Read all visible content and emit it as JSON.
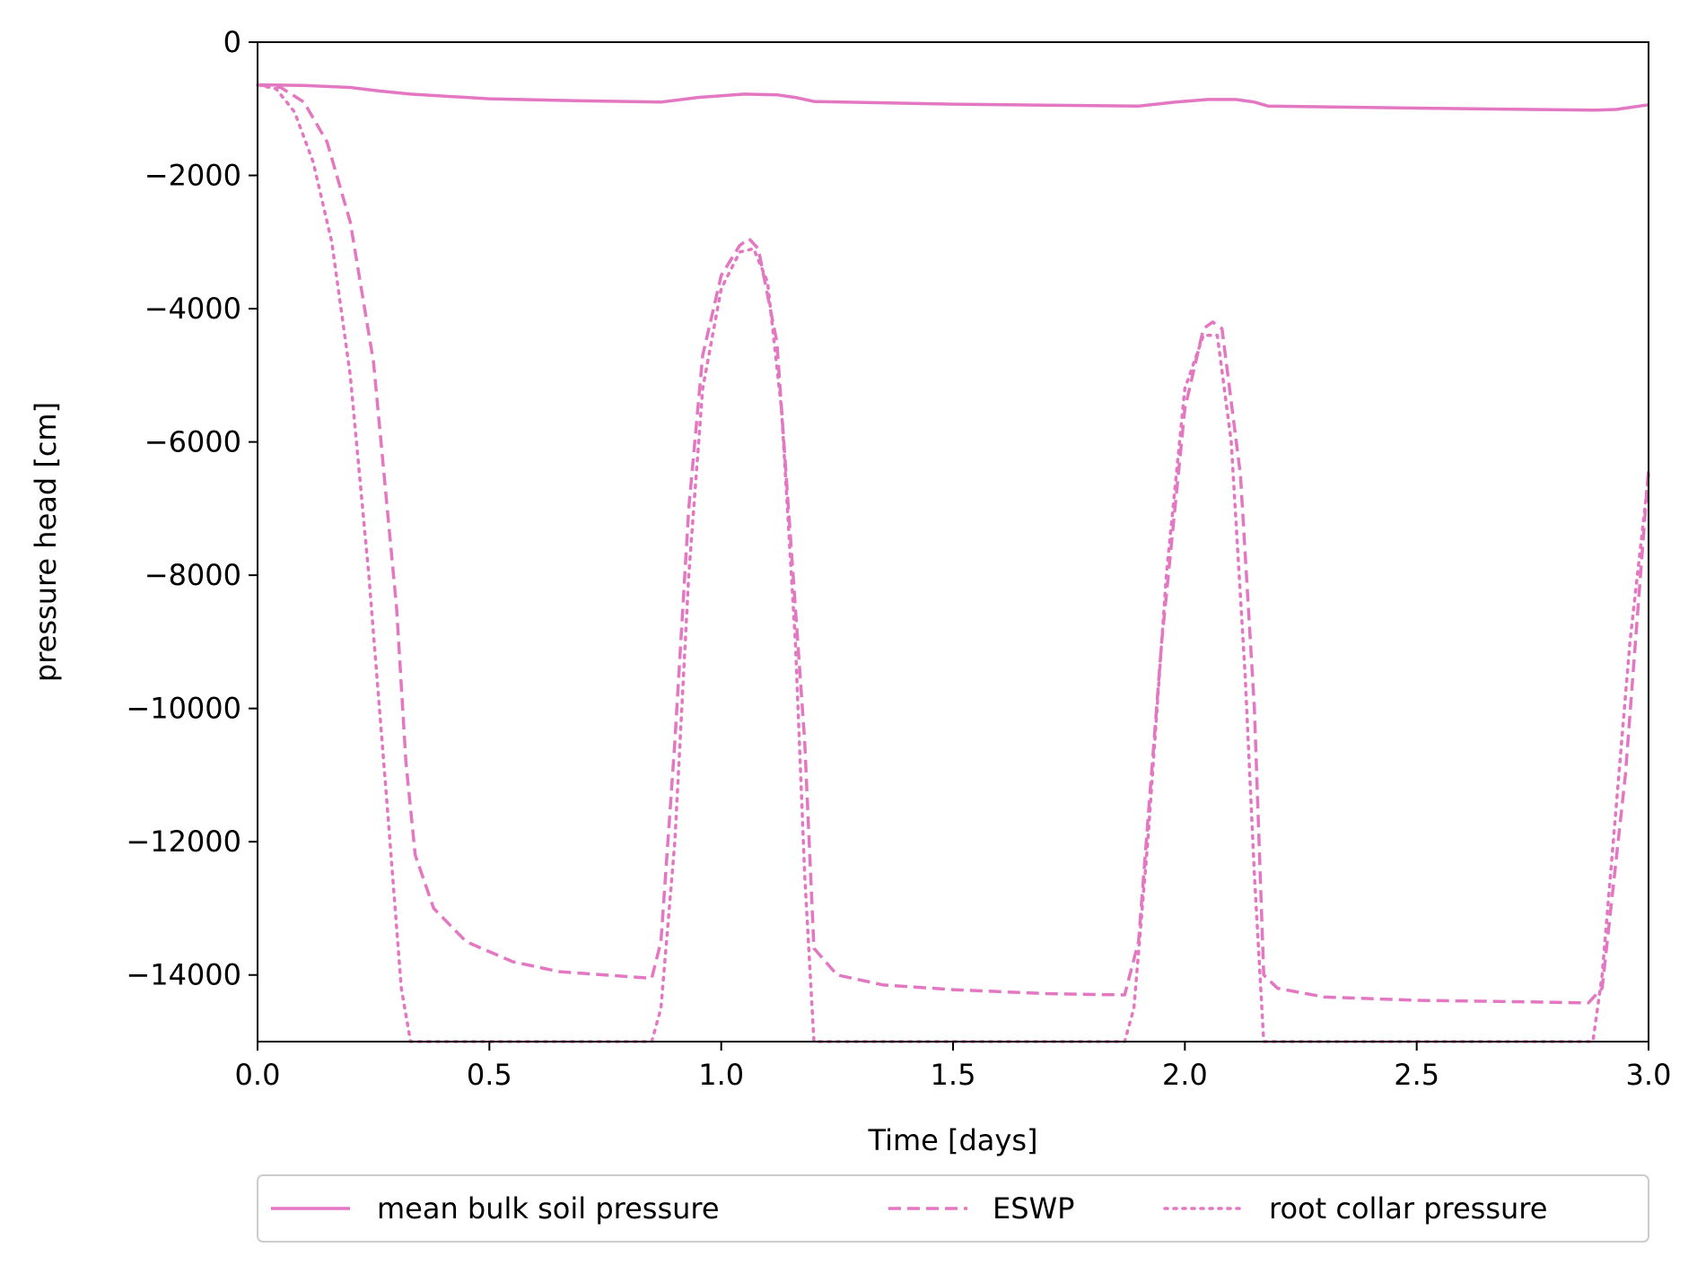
{
  "chart_data": {
    "type": "line",
    "title": "",
    "xlabel": "Time [days]",
    "ylabel": "pressure head [cm]",
    "xlim": [
      0,
      3
    ],
    "ylim": [
      -15000,
      0
    ],
    "xticks": [
      0,
      0.5,
      1,
      1.5,
      2,
      2.5,
      3
    ],
    "xtick_labels": [
      "0.0",
      "0.5",
      "1.0",
      "1.5",
      "2.0",
      "2.5",
      "3.0"
    ],
    "yticks": [
      0,
      -2000,
      -4000,
      -6000,
      -8000,
      -10000,
      -12000,
      -14000
    ],
    "ytick_labels": [
      "0",
      "−2000",
      "−4000",
      "−6000",
      "−8000",
      "−10000",
      "−12000",
      "−14000"
    ],
    "grid": false,
    "legend_placement": "bottom-center",
    "color": "#e377c2",
    "series": [
      {
        "name": "mean bulk soil pressure",
        "style": "solid",
        "x": [
          0,
          0.1,
          0.2,
          0.26,
          0.33,
          0.5,
          0.7,
          0.87,
          0.95,
          1.05,
          1.12,
          1.16,
          1.2,
          1.5,
          1.9,
          1.98,
          2.05,
          2.11,
          2.15,
          2.18,
          2.5,
          2.88,
          2.93,
          3.0
        ],
        "y": [
          -640,
          -650,
          -680,
          -730,
          -780,
          -850,
          -880,
          -900,
          -830,
          -780,
          -790,
          -830,
          -890,
          -930,
          -960,
          -900,
          -860,
          -860,
          -900,
          -960,
          -990,
          -1020,
          -1010,
          -940
        ]
      },
      {
        "name": "ESWP",
        "style": "dashed",
        "x": [
          0,
          0.05,
          0.1,
          0.15,
          0.2,
          0.25,
          0.3,
          0.32,
          0.34,
          0.38,
          0.45,
          0.55,
          0.65,
          0.75,
          0.85,
          0.87,
          0.9,
          0.93,
          0.96,
          1.0,
          1.04,
          1.06,
          1.08,
          1.12,
          1.15,
          1.18,
          1.2,
          1.25,
          1.35,
          1.5,
          1.7,
          1.87,
          1.9,
          1.95,
          2.0,
          2.04,
          2.06,
          2.08,
          2.12,
          2.15,
          2.17,
          2.2,
          2.3,
          2.5,
          2.7,
          2.87,
          2.9,
          2.95,
          3.0
        ],
        "y": [
          -640,
          -680,
          -900,
          -1500,
          -2700,
          -4800,
          -8500,
          -10800,
          -12200,
          -13000,
          -13500,
          -13800,
          -13950,
          -14000,
          -14050,
          -13500,
          -10500,
          -7000,
          -4700,
          -3500,
          -3050,
          -2950,
          -3100,
          -4500,
          -7500,
          -10500,
          -13600,
          -14000,
          -14150,
          -14220,
          -14280,
          -14300,
          -13500,
          -9000,
          -5500,
          -4300,
          -4200,
          -4300,
          -6500,
          -10000,
          -14000,
          -14200,
          -14330,
          -14380,
          -14400,
          -14420,
          -14200,
          -11000,
          -6400
        ]
      },
      {
        "name": "root collar pressure",
        "style": "dotted",
        "x": [
          0,
          0.04,
          0.08,
          0.12,
          0.16,
          0.2,
          0.24,
          0.28,
          0.31,
          0.33,
          0.35,
          0.6,
          0.85,
          0.87,
          0.9,
          0.93,
          0.96,
          1.0,
          1.04,
          1.07,
          1.1,
          1.13,
          1.16,
          1.18,
          1.2,
          1.22,
          1.5,
          1.87,
          1.89,
          1.92,
          1.96,
          2.0,
          2.04,
          2.07,
          2.1,
          2.13,
          2.15,
          2.17,
          2.19,
          2.5,
          2.88,
          2.9,
          2.93,
          2.96,
          3.0
        ],
        "y": [
          -640,
          -700,
          -1050,
          -1800,
          -3000,
          -5000,
          -8000,
          -11500,
          -14200,
          -15000,
          -15000,
          -15000,
          -15000,
          -14500,
          -12000,
          -8000,
          -5200,
          -3700,
          -3150,
          -3100,
          -3600,
          -5500,
          -9000,
          -12500,
          -15000,
          -15000,
          -15000,
          -15000,
          -14500,
          -12000,
          -8000,
          -5200,
          -4400,
          -4400,
          -6000,
          -9500,
          -12500,
          -15000,
          -15000,
          -15000,
          -15000,
          -14000,
          -11500,
          -9000,
          -6500
        ]
      }
    ]
  }
}
